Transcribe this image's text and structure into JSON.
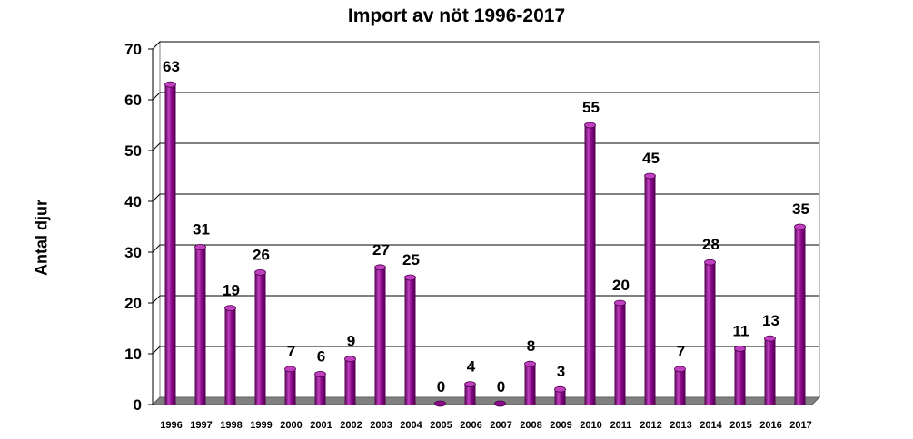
{
  "chart_data": {
    "type": "bar",
    "title": "Import av nöt 1996-2017",
    "xlabel": "",
    "ylabel": "Antal djur",
    "ylim": [
      0,
      70
    ],
    "yticks": [
      0,
      10,
      20,
      30,
      40,
      50,
      60,
      70
    ],
    "grid": true,
    "categories": [
      "1996",
      "1997",
      "1998",
      "1999",
      "2000",
      "2001",
      "2002",
      "2003",
      "2004",
      "2005",
      "2006",
      "2007",
      "2008",
      "2009",
      "2010",
      "2011",
      "2012",
      "2013",
      "2014",
      "2015",
      "2016",
      "2017"
    ],
    "values": [
      63,
      31,
      19,
      26,
      7,
      6,
      9,
      27,
      25,
      0,
      4,
      0,
      8,
      3,
      55,
      20,
      45,
      7,
      28,
      11,
      13,
      35
    ],
    "colors": {
      "bar": "#8b0a8b",
      "bar_dark": "#4d004d",
      "bar_light": "#c040c0",
      "floor": "#808080",
      "grid": "#000000"
    }
  }
}
